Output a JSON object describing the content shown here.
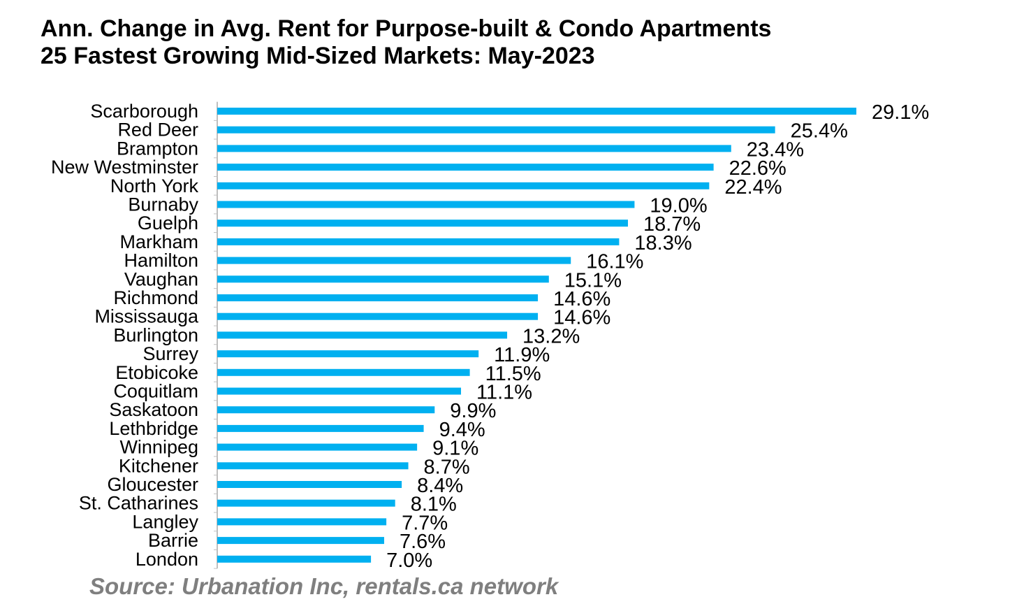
{
  "chart_data": {
    "type": "bar",
    "orientation": "horizontal",
    "title_line1": "Ann. Change in Avg. Rent for Purpose-built & Condo Apartments",
    "title_line2": "25 Fastest Growing Mid-Sized Markets: May-2023",
    "source": "Source: Urbanation Inc, rentals.ca network",
    "categories": [
      "Scarborough",
      "Red Deer",
      "Brampton",
      "New Westminster",
      "North York",
      "Burnaby",
      "Guelph",
      "Markham",
      "Hamilton",
      "Vaughan",
      "Richmond",
      "Mississauga",
      "Burlington",
      "Surrey",
      "Etobicoke",
      "Coquitlam",
      "Saskatoon",
      "Lethbridge",
      "Winnipeg",
      "Kitchener",
      "Gloucester",
      "St. Catharines",
      "Langley",
      "Barrie",
      "London"
    ],
    "values": [
      29.1,
      25.4,
      23.4,
      22.6,
      22.4,
      19.0,
      18.7,
      18.3,
      16.1,
      15.1,
      14.6,
      14.6,
      13.2,
      11.9,
      11.5,
      11.1,
      9.9,
      9.4,
      9.1,
      8.7,
      8.4,
      8.1,
      7.7,
      7.6,
      7.0
    ],
    "value_labels": [
      "29.1%",
      "25.4%",
      "23.4%",
      "22.6%",
      "22.4%",
      "19.0%",
      "18.7%",
      "18.3%",
      "16.1%",
      "15.1%",
      "14.6%",
      "14.6%",
      "13.2%",
      "11.9%",
      "11.5%",
      "11.1%",
      "9.9%",
      "9.4%",
      "9.1%",
      "8.7%",
      "8.4%",
      "8.1%",
      "7.7%",
      "7.6%",
      "7.0%"
    ],
    "xlim": [
      0,
      29.1
    ],
    "bar_color": "#00b0f0",
    "axis_color": "#bfbfbf",
    "grid": false,
    "legend": "none"
  }
}
